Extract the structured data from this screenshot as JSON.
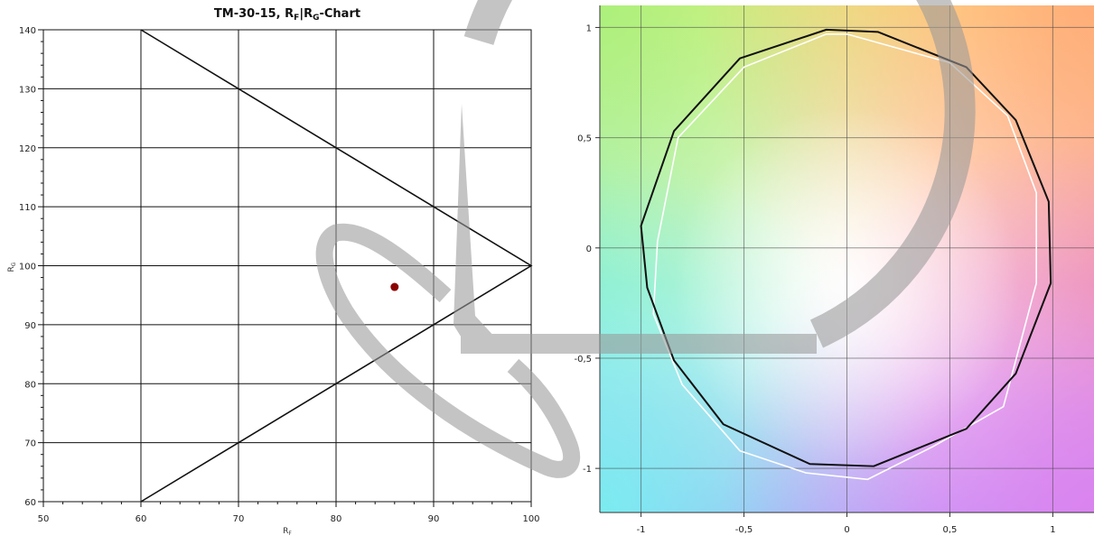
{
  "chart_data": [
    {
      "type": "scatter",
      "title": "TM-30-15, R",
      "title_sub1": "F",
      "title_mid": "|R",
      "title_sub2": "G",
      "title_end": "-Chart",
      "xlabel": "R",
      "xlabel_sub": "F",
      "ylabel": "R",
      "ylabel_sub": "G",
      "xlim": [
        50,
        100
      ],
      "ylim": [
        60,
        140
      ],
      "x_ticks": [
        50,
        60,
        70,
        80,
        90,
        100
      ],
      "y_ticks": [
        60,
        70,
        80,
        90,
        100,
        110,
        120,
        130,
        140
      ],
      "grid": true,
      "boundary": [
        [
          60,
          140
        ],
        [
          100,
          100
        ],
        [
          60,
          60
        ]
      ],
      "points": [
        {
          "x": 86,
          "y": 96.4
        }
      ],
      "colors": {
        "point": "#8b0000",
        "grid": "#111111",
        "boundary": "#111111"
      }
    },
    {
      "type": "line",
      "xlim": [
        -1.2,
        1.2
      ],
      "ylim": [
        -1.2,
        1.1
      ],
      "x_ticks": [
        -1,
        -0.5,
        0,
        0.5,
        1
      ],
      "x_tick_labels": [
        "-1",
        "-0,5",
        "0",
        "0,5",
        "1"
      ],
      "y_ticks": [
        1,
        0.5,
        0,
        -0.5,
        -1
      ],
      "y_tick_labels": [
        "1",
        "0,5",
        "0",
        "-0,5",
        "-1"
      ],
      "grid": true,
      "background": "hue color wheel",
      "series": [
        {
          "color": "#111111",
          "x": [
            -0.1,
            0.15,
            0.58,
            0.82,
            0.98,
            0.99,
            0.82,
            0.58,
            0.13,
            -0.18,
            -0.6,
            -0.84,
            -0.97,
            -1.0,
            -0.84,
            -0.52
          ],
          "y": [
            0.99,
            0.98,
            0.82,
            0.58,
            0.21,
            -0.16,
            -0.57,
            -0.82,
            -0.99,
            -0.98,
            -0.8,
            -0.51,
            -0.18,
            0.1,
            0.53,
            0.86
          ]
        },
        {
          "color": "#ffffff",
          "x": [
            0.0,
            0.5,
            0.78,
            0.92,
            0.92,
            0.76,
            0.42,
            0.1,
            -0.2,
            -0.52,
            -0.8,
            -0.94,
            -0.92,
            -0.82,
            -0.5,
            -0.1
          ],
          "y": [
            0.97,
            0.84,
            0.6,
            0.25,
            -0.16,
            -0.72,
            -0.9,
            -1.05,
            -1.02,
            -0.92,
            -0.62,
            -0.3,
            0.03,
            0.5,
            0.82,
            0.97
          ]
        }
      ]
    }
  ]
}
